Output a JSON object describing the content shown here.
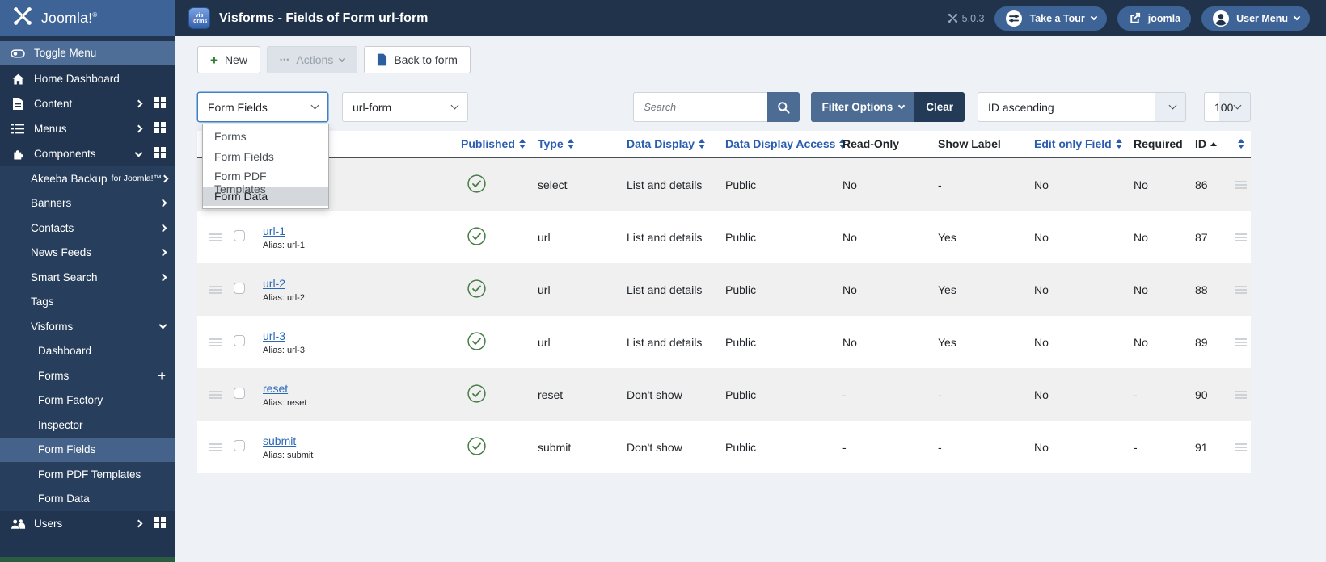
{
  "header": {
    "logo_text": "Joomla!",
    "logo_sup": "®",
    "app_icon_line1": "vis",
    "app_icon_line2": "orms",
    "title": "Visforms - Fields of Form url-form",
    "version": "5.0.3",
    "tour_button": "Take a Tour",
    "site_button": "joomla",
    "user_button": "User Menu"
  },
  "sidebar": {
    "items": [
      {
        "label": "Toggle Menu",
        "level": 0,
        "icon": "toggle-icon",
        "variant": "toggle"
      },
      {
        "label": "Home Dashboard",
        "level": 0,
        "icon": "home-icon"
      },
      {
        "label": "Content",
        "level": 0,
        "icon": "content-icon",
        "chevron": "right",
        "grid": true
      },
      {
        "label": "Menus",
        "level": 0,
        "icon": "menus-icon",
        "chevron": "right",
        "grid": true
      },
      {
        "label": "Components",
        "level": 0,
        "icon": "components-icon",
        "chevron": "down",
        "grid": true
      },
      {
        "label": "Akeeba Backup",
        "suffix": "for Joomla!™",
        "level": 1,
        "chevron": "right",
        "submenu": true
      },
      {
        "label": "Banners",
        "level": 1,
        "chevron": "right",
        "submenu": true
      },
      {
        "label": "Contacts",
        "level": 1,
        "chevron": "right",
        "submenu": true
      },
      {
        "label": "News Feeds",
        "level": 1,
        "chevron": "right",
        "submenu": true
      },
      {
        "label": "Smart Search",
        "level": 1,
        "chevron": "right",
        "submenu": true
      },
      {
        "label": "Tags",
        "level": 1,
        "submenu": true
      },
      {
        "label": "Visforms",
        "level": 1,
        "chevron": "down",
        "submenu": true
      },
      {
        "label": "Dashboard",
        "level": 2,
        "submenu": true
      },
      {
        "label": "Forms",
        "level": 2,
        "plus": true,
        "submenu": true
      },
      {
        "label": "Form Factory",
        "level": 2,
        "submenu": true
      },
      {
        "label": "Inspector",
        "level": 2,
        "submenu": true
      },
      {
        "label": "Form Fields",
        "level": 2,
        "active": true,
        "submenu": true
      },
      {
        "label": "Form PDF Templates",
        "level": 2,
        "submenu": true
      },
      {
        "label": "Form Data",
        "level": 2,
        "submenu": true
      },
      {
        "label": "Users",
        "level": 0,
        "icon": "users-icon",
        "chevron": "right",
        "grid": true
      }
    ]
  },
  "toolbar": {
    "new_label": "New",
    "actions_label": "Actions",
    "back_label": "Back to form"
  },
  "filters": {
    "view_select": {
      "value": "Form Fields",
      "options": [
        "Forms",
        "Form Fields",
        "Form PDF Templates",
        "Form Data"
      ],
      "highlighted": "Form Data"
    },
    "form_select": {
      "value": "url-form"
    },
    "search": {
      "placeholder": "Search"
    },
    "filter_options_label": "Filter Options",
    "clear_label": "Clear",
    "sort_select": {
      "value": "ID ascending"
    },
    "limit_select": {
      "value": "100"
    }
  },
  "table": {
    "headers": [
      {
        "label": "Published",
        "sortable": true
      },
      {
        "label": "Type",
        "sortable": true
      },
      {
        "label": "Data Display",
        "sortable": true
      },
      {
        "label": "Data Display Access",
        "sortable": true
      },
      {
        "label": "Read-Only",
        "sortable": false
      },
      {
        "label": "Show Label",
        "sortable": false
      },
      {
        "label": "Edit only Field",
        "sortable": true
      },
      {
        "label": "Required",
        "sortable": false
      },
      {
        "label": "ID",
        "sortable": false,
        "sorted": "asc"
      }
    ],
    "rows": [
      {
        "title": "",
        "alias": "",
        "title_hidden": true,
        "published": true,
        "type": "select",
        "data_display": "List and details",
        "access": "Public",
        "read_only": "No",
        "show_label": "-",
        "edit_only": "No",
        "required": "No",
        "id": "86"
      },
      {
        "title": "url-1",
        "alias": "Alias: url-1",
        "published": true,
        "type": "url",
        "data_display": "List and details",
        "access": "Public",
        "read_only": "No",
        "show_label": "Yes",
        "edit_only": "No",
        "required": "No",
        "id": "87"
      },
      {
        "title": "url-2",
        "alias": "Alias: url-2",
        "published": true,
        "type": "url",
        "data_display": "List and details",
        "access": "Public",
        "read_only": "No",
        "show_label": "Yes",
        "edit_only": "No",
        "required": "No",
        "id": "88"
      },
      {
        "title": "url-3",
        "alias": "Alias: url-3",
        "published": true,
        "type": "url",
        "data_display": "List and details",
        "access": "Public",
        "read_only": "No",
        "show_label": "Yes",
        "edit_only": "No",
        "required": "No",
        "id": "89"
      },
      {
        "title": "reset",
        "alias": "Alias: reset",
        "published": true,
        "type": "reset",
        "data_display": "Don't show",
        "access": "Public",
        "read_only": "-",
        "show_label": "-",
        "edit_only": "No",
        "required": "-",
        "id": "90"
      },
      {
        "title": "submit",
        "alias": "Alias: submit",
        "published": true,
        "type": "submit",
        "data_display": "Don't show",
        "access": "Public",
        "read_only": "-",
        "show_label": "-",
        "edit_only": "No",
        "required": "-",
        "id": "91"
      }
    ]
  }
}
